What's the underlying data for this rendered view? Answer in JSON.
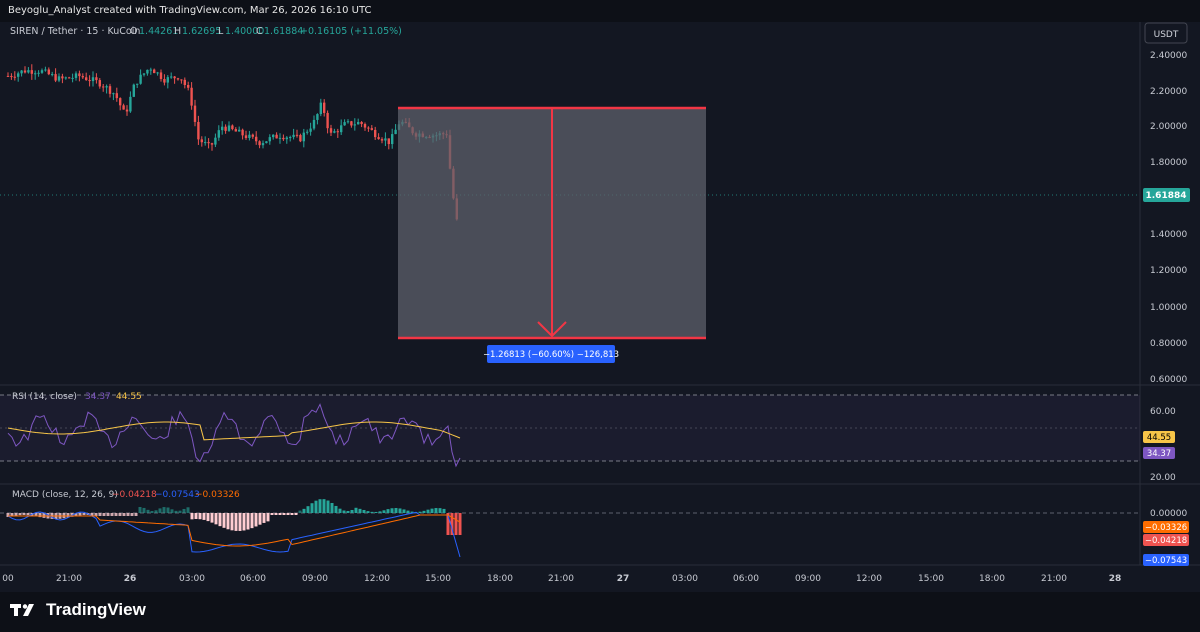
{
  "header": {
    "attribution": "Beyoglu_Analyst created with TradingView.com, Mar 26, 2026 16:10 UTC"
  },
  "legend": {
    "symbol": "SIREN / Tether · 15 · KuCoin",
    "o_label": "O",
    "o_value": "1.44261",
    "h_label": "H",
    "h_value": "1.62695",
    "l_label": "L",
    "l_value": "1.40000",
    "c_label": "C",
    "c_value": "1.61884",
    "change": "+0.16105 (+11.05%)"
  },
  "currency_button": "USDT",
  "price_axis": {
    "ticks": [
      "2.40000",
      "2.20000",
      "2.00000",
      "1.80000",
      "1.60000",
      "1.40000",
      "1.20000",
      "1.00000",
      "0.80000",
      "0.60000"
    ],
    "current_price": "1.61884"
  },
  "measure": {
    "label": "−1.26813 (−60.60%) −126,813"
  },
  "rsi": {
    "title": "RSI (14, close)",
    "value1": "34.37",
    "value2": "44.55",
    "axis_ticks": [
      "60.00",
      "20.00"
    ],
    "badge_ma": "44.55",
    "badge_rsi": "34.37"
  },
  "macd": {
    "title": "MACD (close, 12, 26, 9)",
    "hist": "−0.04218",
    "macd": "−0.07543",
    "signal": "−0.03326",
    "axis_tick": "0.00000",
    "badge_signal": "−0.03326",
    "badge_hist": "−0.04218",
    "badge_macd": "−0.07543"
  },
  "time_axis": [
    "00",
    "21:00",
    "26",
    "03:00",
    "06:00",
    "09:00",
    "12:00",
    "15:00",
    "18:00",
    "21:00",
    "27",
    "03:00",
    "06:00",
    "09:00",
    "12:00",
    "15:00",
    "18:00",
    "21:00",
    "28"
  ],
  "brand": "TradingView",
  "colors": {
    "background": "#131722",
    "up": "#26a69a",
    "down": "#ef5350",
    "measure_line": "#f23645",
    "measure_box": "#5d606b",
    "rsi_line": "#7e57c2",
    "rsi_ma": "#f7c548",
    "macd_line": "#2962ff",
    "signal_line": "#ff6d00",
    "price_badge": "#26a69a",
    "label_blue": "#2962ff"
  }
}
